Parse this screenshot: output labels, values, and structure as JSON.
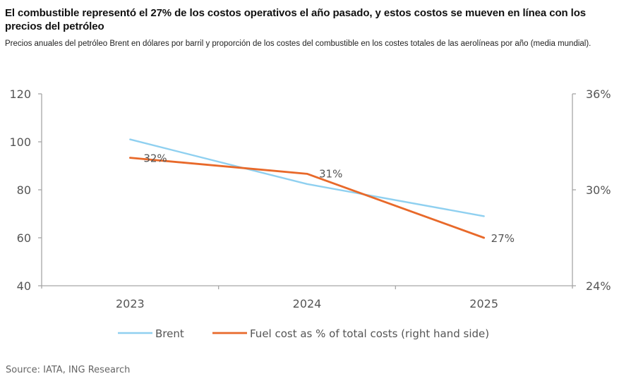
{
  "header": {
    "title": "El combustible representó el 27% de los costos operativos el año pasado, y estos costos se mueven en línea con los precios del petróleo",
    "subtitle": "Precios anuales del petróleo Brent en dólares por barril y proporción de los costes del combustible en los costes totales de las aerolíneas por año (media mundial)."
  },
  "footer": {
    "source": "Source: IATA, ING Research"
  },
  "chart_data": {
    "type": "line",
    "title": "El combustible representó el 27% de los costos operativos el año pasado, y estos costos se mueven en línea con los precios del petróleo",
    "subtitle": "Precios anuales del petróleo Brent en dólares por barril y proporción de los costes del combustible en los costes totales de las aerolíneas por año (media mundial).",
    "categories": [
      "2023",
      "2024",
      "2025"
    ],
    "xlabel": "",
    "ylabel_left": "",
    "ylabel_right": "",
    "y_left": {
      "ylim": [
        40,
        120
      ],
      "ticks": [
        40,
        60,
        80,
        100,
        120
      ],
      "tick_labels": [
        "40",
        "60",
        "80",
        "100",
        "120"
      ]
    },
    "y_right": {
      "ylim": [
        24,
        36
      ],
      "ticks": [
        24,
        30,
        36
      ],
      "tick_labels": [
        "24%",
        "30%",
        "36%"
      ]
    },
    "grid": false,
    "legend_position": "bottom",
    "series": [
      {
        "name": "Brent",
        "axis": "left",
        "color": "#8FD0F0",
        "values": [
          101,
          82.4,
          69
        ],
        "data_labels": [
          "",
          "",
          ""
        ]
      },
      {
        "name": "Fuel cost as % of total costs (right hand side)",
        "axis": "right",
        "color": "#E8692A",
        "values": [
          32,
          31,
          27
        ],
        "data_labels": [
          "32%",
          "31%",
          "27%"
        ]
      }
    ]
  }
}
